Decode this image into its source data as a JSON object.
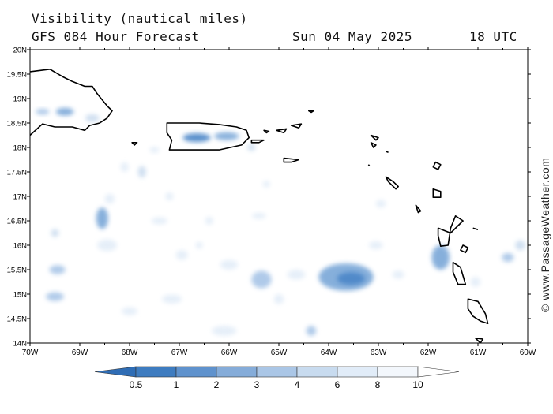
{
  "header": {
    "title": "Visibility (nautical miles)",
    "forecast": "GFS 084 Hour Forecast",
    "date": "Sun 04 May 2025",
    "time": "18 UTC"
  },
  "map": {
    "lon_labels": [
      "70W",
      "69W",
      "68W",
      "67W",
      "66W",
      "65W",
      "64W",
      "63W",
      "62W",
      "61W",
      "60W"
    ],
    "lon_values": [
      -70,
      -69,
      -68,
      -67,
      -66,
      -65,
      -64,
      -63,
      -62,
      -61,
      -60
    ],
    "lat_labels": [
      "14N",
      "14.5N",
      "15N",
      "15.5N",
      "16N",
      "16.5N",
      "17N",
      "17.5N",
      "18N",
      "18.5N",
      "19N",
      "19.5N",
      "20N"
    ],
    "lat_values": [
      14,
      14.5,
      15,
      15.5,
      16,
      16.5,
      17,
      17.5,
      18,
      18.5,
      19,
      19.5,
      20
    ],
    "lon_range": [
      -70,
      -60
    ],
    "lat_range": [
      14,
      20
    ]
  },
  "visibility_blobs": [
    {
      "lon": -69.3,
      "lat": 18.73,
      "rx": 0.18,
      "ry": 0.08,
      "level": 2
    },
    {
      "lon": -69.75,
      "lat": 18.73,
      "rx": 0.14,
      "ry": 0.06,
      "level": 3
    },
    {
      "lon": -68.75,
      "lat": 18.6,
      "rx": 0.14,
      "ry": 0.08,
      "level": 4
    },
    {
      "lon": -66.65,
      "lat": 18.2,
      "rx": 0.28,
      "ry": 0.09,
      "level": 1
    },
    {
      "lon": -66.05,
      "lat": 18.23,
      "rx": 0.25,
      "ry": 0.08,
      "level": 2
    },
    {
      "lon": -65.55,
      "lat": 18.0,
      "rx": 0.08,
      "ry": 0.07,
      "level": 4
    },
    {
      "lon": -67.5,
      "lat": 17.95,
      "rx": 0.1,
      "ry": 0.06,
      "level": 5
    },
    {
      "lon": -68.1,
      "lat": 17.6,
      "rx": 0.08,
      "ry": 0.1,
      "level": 5
    },
    {
      "lon": -67.75,
      "lat": 17.5,
      "rx": 0.08,
      "ry": 0.12,
      "level": 4
    },
    {
      "lon": -67.2,
      "lat": 17.0,
      "rx": 0.08,
      "ry": 0.08,
      "level": 5
    },
    {
      "lon": -68.55,
      "lat": 16.55,
      "rx": 0.12,
      "ry": 0.22,
      "level": 2
    },
    {
      "lon": -68.4,
      "lat": 16.95,
      "rx": 0.1,
      "ry": 0.1,
      "level": 5
    },
    {
      "lon": -68.45,
      "lat": 16.0,
      "rx": 0.2,
      "ry": 0.12,
      "level": 5
    },
    {
      "lon": -69.5,
      "lat": 16.25,
      "rx": 0.08,
      "ry": 0.08,
      "level": 4
    },
    {
      "lon": -69.45,
      "lat": 15.5,
      "rx": 0.16,
      "ry": 0.09,
      "level": 3
    },
    {
      "lon": -69.5,
      "lat": 14.95,
      "rx": 0.18,
      "ry": 0.09,
      "level": 3
    },
    {
      "lon": -67.4,
      "lat": 16.5,
      "rx": 0.16,
      "ry": 0.07,
      "level": 5
    },
    {
      "lon": -66.95,
      "lat": 15.8,
      "rx": 0.12,
      "ry": 0.1,
      "level": 5
    },
    {
      "lon": -66.4,
      "lat": 16.5,
      "rx": 0.08,
      "ry": 0.08,
      "level": 5
    },
    {
      "lon": -66.6,
      "lat": 16.0,
      "rx": 0.07,
      "ry": 0.07,
      "level": 5
    },
    {
      "lon": -66.0,
      "lat": 15.6,
      "rx": 0.18,
      "ry": 0.1,
      "level": 5
    },
    {
      "lon": -65.35,
      "lat": 15.3,
      "rx": 0.2,
      "ry": 0.18,
      "level": 3
    },
    {
      "lon": -65.4,
      "lat": 16.6,
      "rx": 0.14,
      "ry": 0.06,
      "level": 5
    },
    {
      "lon": -65.25,
      "lat": 17.25,
      "rx": 0.07,
      "ry": 0.07,
      "level": 5
    },
    {
      "lon": -64.35,
      "lat": 14.25,
      "rx": 0.1,
      "ry": 0.1,
      "level": 3
    },
    {
      "lon": -65.0,
      "lat": 14.9,
      "rx": 0.1,
      "ry": 0.1,
      "level": 5
    },
    {
      "lon": -66.1,
      "lat": 14.25,
      "rx": 0.25,
      "ry": 0.1,
      "level": 5
    },
    {
      "lon": -67.15,
      "lat": 14.9,
      "rx": 0.2,
      "ry": 0.09,
      "level": 5
    },
    {
      "lon": -68.0,
      "lat": 14.65,
      "rx": 0.16,
      "ry": 0.08,
      "level": 5
    },
    {
      "lon": -63.65,
      "lat": 15.35,
      "rx": 0.55,
      "ry": 0.28,
      "level": 2
    },
    {
      "lon": -63.55,
      "lat": 15.32,
      "rx": 0.28,
      "ry": 0.13,
      "level": 1
    },
    {
      "lon": -64.65,
      "lat": 15.4,
      "rx": 0.18,
      "ry": 0.1,
      "level": 5
    },
    {
      "lon": -63.05,
      "lat": 16.0,
      "rx": 0.14,
      "ry": 0.08,
      "level": 5
    },
    {
      "lon": -62.6,
      "lat": 15.4,
      "rx": 0.12,
      "ry": 0.08,
      "level": 5
    },
    {
      "lon": -62.95,
      "lat": 16.85,
      "rx": 0.1,
      "ry": 0.08,
      "level": 5
    },
    {
      "lon": -61.75,
      "lat": 15.75,
      "rx": 0.18,
      "ry": 0.25,
      "level": 2
    },
    {
      "lon": -60.4,
      "lat": 15.75,
      "rx": 0.12,
      "ry": 0.09,
      "level": 3
    },
    {
      "lon": -60.15,
      "lat": 16.0,
      "rx": 0.1,
      "ry": 0.1,
      "level": 4
    },
    {
      "lon": -61.05,
      "lat": 15.25,
      "rx": 0.1,
      "ry": 0.1,
      "level": 5
    }
  ],
  "islands": [
    {
      "name": "Hispaniola",
      "points": [
        [
          -70,
          19.55
        ],
        [
          -69.6,
          19.6
        ],
        [
          -69.35,
          19.45
        ],
        [
          -69.15,
          19.35
        ],
        [
          -68.9,
          19.25
        ],
        [
          -68.75,
          19.25
        ],
        [
          -68.65,
          19.1
        ],
        [
          -68.45,
          18.85
        ],
        [
          -68.35,
          18.75
        ],
        [
          -68.45,
          18.6
        ],
        [
          -68.6,
          18.5
        ],
        [
          -68.8,
          18.45
        ],
        [
          -68.9,
          18.35
        ],
        [
          -69.15,
          18.42
        ],
        [
          -69.5,
          18.42
        ],
        [
          -69.75,
          18.48
        ],
        [
          -70,
          18.25
        ]
      ]
    },
    {
      "name": "Puerto Rico",
      "points": [
        [
          -67.25,
          18.5
        ],
        [
          -66.6,
          18.5
        ],
        [
          -66.2,
          18.47
        ],
        [
          -65.85,
          18.42
        ],
        [
          -65.65,
          18.35
        ],
        [
          -65.6,
          18.2
        ],
        [
          -65.75,
          18.05
        ],
        [
          -66.2,
          17.95
        ],
        [
          -66.6,
          17.95
        ],
        [
          -67.0,
          17.95
        ],
        [
          -67.2,
          17.95
        ],
        [
          -67.15,
          18.15
        ],
        [
          -67.25,
          18.3
        ]
      ]
    },
    {
      "name": "Vieques",
      "points": [
        [
          -65.55,
          18.15
        ],
        [
          -65.3,
          18.15
        ],
        [
          -65.4,
          18.1
        ],
        [
          -65.55,
          18.1
        ]
      ]
    },
    {
      "name": "Mona",
      "points": [
        [
          -67.95,
          18.1
        ],
        [
          -67.85,
          18.1
        ],
        [
          -67.9,
          18.05
        ]
      ]
    },
    {
      "name": "St Croix",
      "points": [
        [
          -64.9,
          17.78
        ],
        [
          -64.6,
          17.75
        ],
        [
          -64.75,
          17.7
        ],
        [
          -64.9,
          17.7
        ]
      ]
    },
    {
      "name": "Culebra",
      "points": [
        [
          -65.3,
          18.35
        ],
        [
          -65.2,
          18.33
        ],
        [
          -65.25,
          18.3
        ]
      ]
    },
    {
      "name": "St Thomas",
      "points": [
        [
          -65.05,
          18.35
        ],
        [
          -64.85,
          18.38
        ],
        [
          -64.9,
          18.3
        ]
      ]
    },
    {
      "name": "Tortola",
      "points": [
        [
          -64.75,
          18.45
        ],
        [
          -64.55,
          18.48
        ],
        [
          -64.6,
          18.4
        ]
      ]
    },
    {
      "name": "Anegada",
      "points": [
        [
          -64.4,
          18.75
        ],
        [
          -64.3,
          18.75
        ],
        [
          -64.35,
          18.72
        ]
      ]
    },
    {
      "name": "Anguilla",
      "points": [
        [
          -63.15,
          18.25
        ],
        [
          -63.0,
          18.2
        ],
        [
          -63.05,
          18.15
        ]
      ]
    },
    {
      "name": "St Martin",
      "points": [
        [
          -63.15,
          18.1
        ],
        [
          -63.05,
          18.05
        ],
        [
          -63.1,
          18.0
        ]
      ]
    },
    {
      "name": "St Barts",
      "points": [
        [
          -62.85,
          17.92
        ],
        [
          -62.8,
          17.9
        ]
      ]
    },
    {
      "name": "Saba",
      "points": [
        [
          -63.2,
          17.65
        ],
        [
          -63.18,
          17.62
        ]
      ]
    },
    {
      "name": "St Kitts",
      "points": [
        [
          -62.85,
          17.4
        ],
        [
          -62.7,
          17.3
        ],
        [
          -62.6,
          17.2
        ],
        [
          -62.65,
          17.15
        ],
        [
          -62.8,
          17.3
        ]
      ]
    },
    {
      "name": "Antigua",
      "points": [
        [
          -61.9,
          17.15
        ],
        [
          -61.75,
          17.1
        ],
        [
          -61.75,
          16.98
        ],
        [
          -61.9,
          16.98
        ]
      ]
    },
    {
      "name": "Barbuda",
      "points": [
        [
          -61.85,
          17.7
        ],
        [
          -61.75,
          17.65
        ],
        [
          -61.8,
          17.55
        ],
        [
          -61.9,
          17.6
        ]
      ]
    },
    {
      "name": "Montserrat",
      "points": [
        [
          -62.25,
          16.82
        ],
        [
          -62.15,
          16.7
        ],
        [
          -62.2,
          16.67
        ]
      ]
    },
    {
      "name": "Guadeloupe",
      "points": [
        [
          -61.8,
          16.35
        ],
        [
          -61.55,
          16.25
        ],
        [
          -61.3,
          16.5
        ],
        [
          -61.45,
          16.6
        ],
        [
          -61.55,
          16.35
        ],
        [
          -61.6,
          16.0
        ],
        [
          -61.75,
          15.98
        ],
        [
          -61.8,
          16.2
        ]
      ]
    },
    {
      "name": "Marie-Galante",
      "points": [
        [
          -61.3,
          16.0
        ],
        [
          -61.2,
          15.95
        ],
        [
          -61.25,
          15.85
        ],
        [
          -61.35,
          15.9
        ]
      ]
    },
    {
      "name": "Desirade",
      "points": [
        [
          -61.1,
          16.35
        ],
        [
          -61.0,
          16.32
        ]
      ]
    },
    {
      "name": "Dominica",
      "points": [
        [
          -61.5,
          15.65
        ],
        [
          -61.35,
          15.55
        ],
        [
          -61.25,
          15.2
        ],
        [
          -61.4,
          15.2
        ],
        [
          -61.5,
          15.45
        ]
      ]
    },
    {
      "name": "Martinique",
      "points": [
        [
          -61.2,
          14.9
        ],
        [
          -61.0,
          14.85
        ],
        [
          -60.85,
          14.6
        ],
        [
          -60.8,
          14.4
        ],
        [
          -60.95,
          14.45
        ],
        [
          -61.1,
          14.55
        ],
        [
          -61.2,
          14.7
        ]
      ]
    },
    {
      "name": "St Lucia",
      "points": [
        [
          -61.05,
          14.1
        ],
        [
          -60.9,
          14.08
        ],
        [
          -60.95,
          14.0
        ]
      ]
    }
  ],
  "legend": {
    "labels": [
      "0.5",
      "1",
      "2",
      "3",
      "4",
      "6",
      "8",
      "10"
    ],
    "colors": [
      "#3e7cc0",
      "#5f92cd",
      "#85acd9",
      "#aac6e6",
      "#c8dbef",
      "#e1ecf8",
      "#f3f7fc",
      "#ffffff"
    ]
  },
  "level_colors": [
    "#2f6db5",
    "#4b86c8",
    "#7aa7d8",
    "#a7c5e7",
    "#cadcef",
    "#e3edf8"
  ],
  "credit": "© www.PassageWeather.com"
}
